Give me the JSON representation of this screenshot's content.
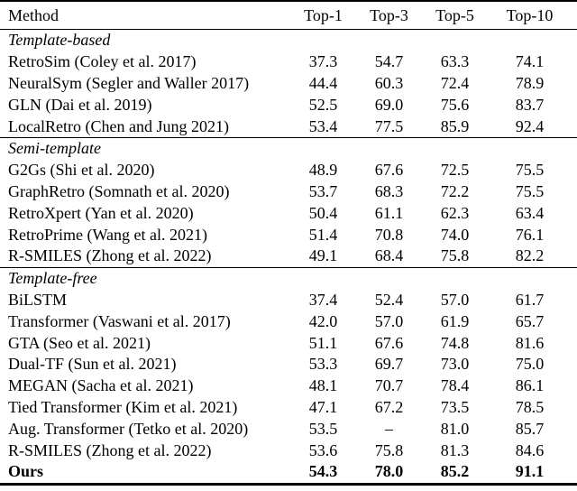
{
  "table": {
    "columns": [
      "Method",
      "Top-1",
      "Top-3",
      "Top-5",
      "Top-10"
    ],
    "sections": [
      {
        "label": "Template-based",
        "rows": [
          {
            "method": "RetroSim (Coley et al. 2017)",
            "values": [
              "37.3",
              "54.7",
              "63.3",
              "74.1"
            ],
            "bold": false
          },
          {
            "method": "NeuralSym (Segler and Waller 2017)",
            "values": [
              "44.4",
              "60.3",
              "72.4",
              "78.9"
            ],
            "bold": false
          },
          {
            "method": "GLN (Dai et al. 2019)",
            "values": [
              "52.5",
              "69.0",
              "75.6",
              "83.7"
            ],
            "bold": false
          },
          {
            "method": "LocalRetro (Chen and Jung 2021)",
            "values": [
              "53.4",
              "77.5",
              "85.9",
              "92.4"
            ],
            "bold": false
          }
        ]
      },
      {
        "label": "Semi-template",
        "rows": [
          {
            "method": "G2Gs (Shi et al. 2020)",
            "values": [
              "48.9",
              "67.6",
              "72.5",
              "75.5"
            ],
            "bold": false
          },
          {
            "method": "GraphRetro (Somnath et al. 2020)",
            "values": [
              "53.7",
              "68.3",
              "72.2",
              "75.5"
            ],
            "bold": false
          },
          {
            "method": "RetroXpert (Yan et al. 2020)",
            "values": [
              "50.4",
              "61.1",
              "62.3",
              "63.4"
            ],
            "bold": false
          },
          {
            "method": "RetroPrime (Wang et al. 2021)",
            "values": [
              "51.4",
              "70.8",
              "74.0",
              "76.1"
            ],
            "bold": false
          },
          {
            "method": "R-SMILES (Zhong et al. 2022)",
            "values": [
              "49.1",
              "68.4",
              "75.8",
              "82.2"
            ],
            "bold": false
          }
        ]
      },
      {
        "label": "Template-free",
        "rows": [
          {
            "method": "BiLSTM",
            "values": [
              "37.4",
              "52.4",
              "57.0",
              "61.7"
            ],
            "bold": false
          },
          {
            "method": "Transformer (Vaswani et al. 2017)",
            "values": [
              "42.0",
              "57.0",
              "61.9",
              "65.7"
            ],
            "bold": false
          },
          {
            "method": "GTA (Seo et al. 2021)",
            "values": [
              "51.1",
              "67.6",
              "74.8",
              "81.6"
            ],
            "bold": false
          },
          {
            "method": "Dual-TF (Sun et al. 2021)",
            "values": [
              "53.3",
              "69.7",
              "73.0",
              "75.0"
            ],
            "bold": false
          },
          {
            "method": "MEGAN (Sacha et al. 2021)",
            "values": [
              "48.1",
              "70.7",
              "78.4",
              "86.1"
            ],
            "bold": false
          },
          {
            "method": "Tied Transformer (Kim et al. 2021)",
            "values": [
              "47.1",
              "67.2",
              "73.5",
              "78.5"
            ],
            "bold": false
          },
          {
            "method": "Aug. Transformer (Tetko et al. 2020)",
            "values": [
              "53.5",
              "–",
              "81.0",
              "85.7"
            ],
            "bold": false
          },
          {
            "method": "R-SMILES (Zhong et al. 2022)",
            "values": [
              "53.6",
              "75.8",
              "81.3",
              "84.6"
            ],
            "bold": false
          },
          {
            "method": "Ours",
            "values": [
              "54.3",
              "78.0",
              "85.2",
              "91.1"
            ],
            "bold": true
          }
        ]
      }
    ],
    "colors": {
      "text": "#000000",
      "background": "#ffffff",
      "rule": "#000000"
    }
  }
}
